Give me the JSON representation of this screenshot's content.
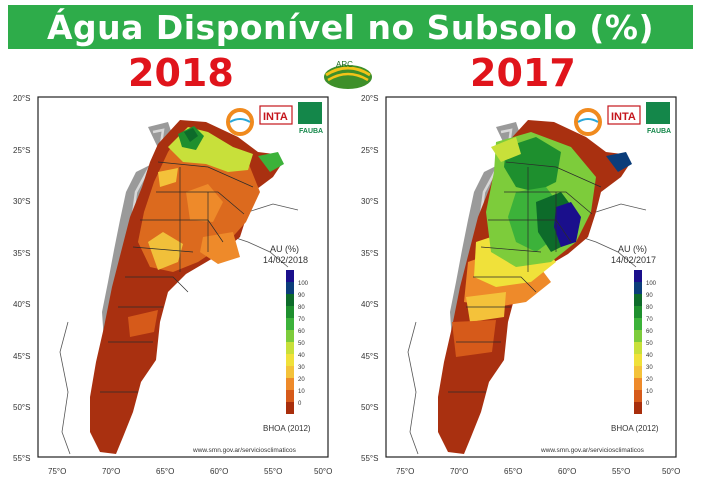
{
  "title": "Água Disponível no Subsolo (%)",
  "arc_logo_text": "ARC",
  "panels": [
    {
      "year_label": "2018",
      "legend_title": "AU (%)",
      "legend_date": "14/02/2018",
      "source": "BHOA (2012)",
      "url": "www.smn.gov.ar/serviciosclimaticos",
      "logos": [
        "INTA",
        "FAUBA"
      ]
    },
    {
      "year_label": "2017",
      "legend_title": "AU (%)",
      "legend_date": "14/02/2017",
      "source": "BHOA (2012)",
      "url": "www.smn.gov.ar/serviciosclimaticos",
      "logos": [
        "INTA",
        "FAUBA"
      ]
    }
  ],
  "latitude_labels": [
    "20°S",
    "25°S",
    "30°S",
    "35°S",
    "40°S",
    "45°S",
    "50°S",
    "55°S"
  ],
  "longitude_labels": [
    "75°O",
    "70°O",
    "65°O",
    "60°O",
    "55°O",
    "50°O"
  ],
  "legend_ticks": [
    "100",
    "90",
    "80",
    "70",
    "60",
    "50",
    "40",
    "30",
    "20",
    "10",
    "0"
  ],
  "colors": {
    "banner": "#2eac4a",
    "year": "#e0141b",
    "scale": [
      "#1a0f8c",
      "#0b3d7a",
      "#0d6b2a",
      "#1e8f2e",
      "#3cb23a",
      "#7dcc3b",
      "#c8e03a",
      "#f0e13a",
      "#f4c23a",
      "#ee8a2a",
      "#d65a1a",
      "#a82e0c"
    ]
  }
}
